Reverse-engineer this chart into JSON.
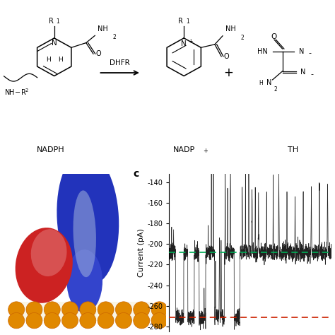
{
  "panel_c_label": "c",
  "ylabel": "Current (pA)",
  "yticks": [
    -280,
    -260,
    -240,
    -220,
    -200,
    -180,
    -160,
    -140
  ],
  "ylim": [
    -285,
    -132
  ],
  "green_line_y": -208,
  "red_line_y": -271,
  "green_color": "#00aa55",
  "red_color": "#cc2200",
  "trace_color": "#111111",
  "gray_trace_color": "#888888",
  "bg_color": "#ffffff",
  "baseline_current": -208,
  "blocked_current": -271,
  "open_noise": 4.0,
  "blocked_noise": 2.5,
  "nadph_label": "NADPH",
  "nadp_label": "NADP",
  "nadp_plus": "+",
  "th_label": "TH",
  "dhfr_label": "DHFR",
  "plus_sign": "+",
  "label_fontsize": 8,
  "tick_fontsize": 7,
  "ylabel_fontsize": 8
}
